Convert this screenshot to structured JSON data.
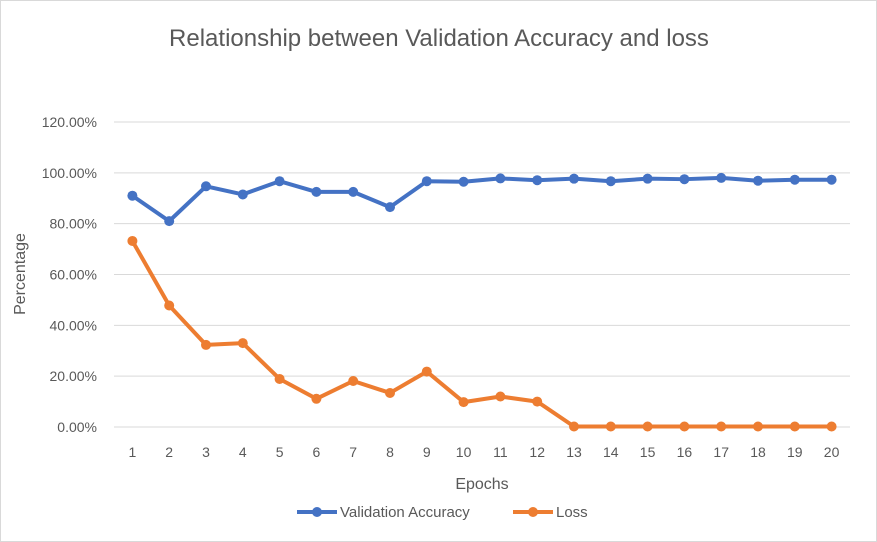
{
  "chart_data": {
    "type": "line",
    "title": "Relationship between Validation Accuracy and loss",
    "xlabel": "Epochs",
    "ylabel": "Percentage",
    "x": [
      1,
      2,
      3,
      4,
      5,
      6,
      7,
      8,
      9,
      10,
      11,
      12,
      13,
      14,
      15,
      16,
      17,
      18,
      19,
      20
    ],
    "ylim": [
      0,
      1.2
    ],
    "yticks": [
      "0.00%",
      "20.00%",
      "40.00%",
      "60.00%",
      "80.00%",
      "100.00%",
      "120.00%"
    ],
    "ytick_values": [
      0,
      0.2,
      0.4,
      0.6,
      0.8,
      1.0,
      1.2
    ],
    "grid": true,
    "legend_position": "bottom",
    "series": [
      {
        "name": "Validation Accuracy",
        "color": "#4472C4",
        "values": [
          0.91,
          0.81,
          0.947,
          0.915,
          0.967,
          0.925,
          0.925,
          0.865,
          0.967,
          0.965,
          0.978,
          0.971,
          0.977,
          0.967,
          0.977,
          0.975,
          0.98,
          0.969,
          0.973,
          0.973
        ]
      },
      {
        "name": "Loss",
        "color": "#ED7D31",
        "values": [
          0.732,
          0.478,
          0.323,
          0.33,
          0.189,
          0.111,
          0.181,
          0.134,
          0.218,
          0.098,
          0.12,
          0.1,
          0.002,
          0.002,
          0.002,
          0.002,
          0.002,
          0.002,
          0.002,
          0.002
        ]
      }
    ]
  }
}
